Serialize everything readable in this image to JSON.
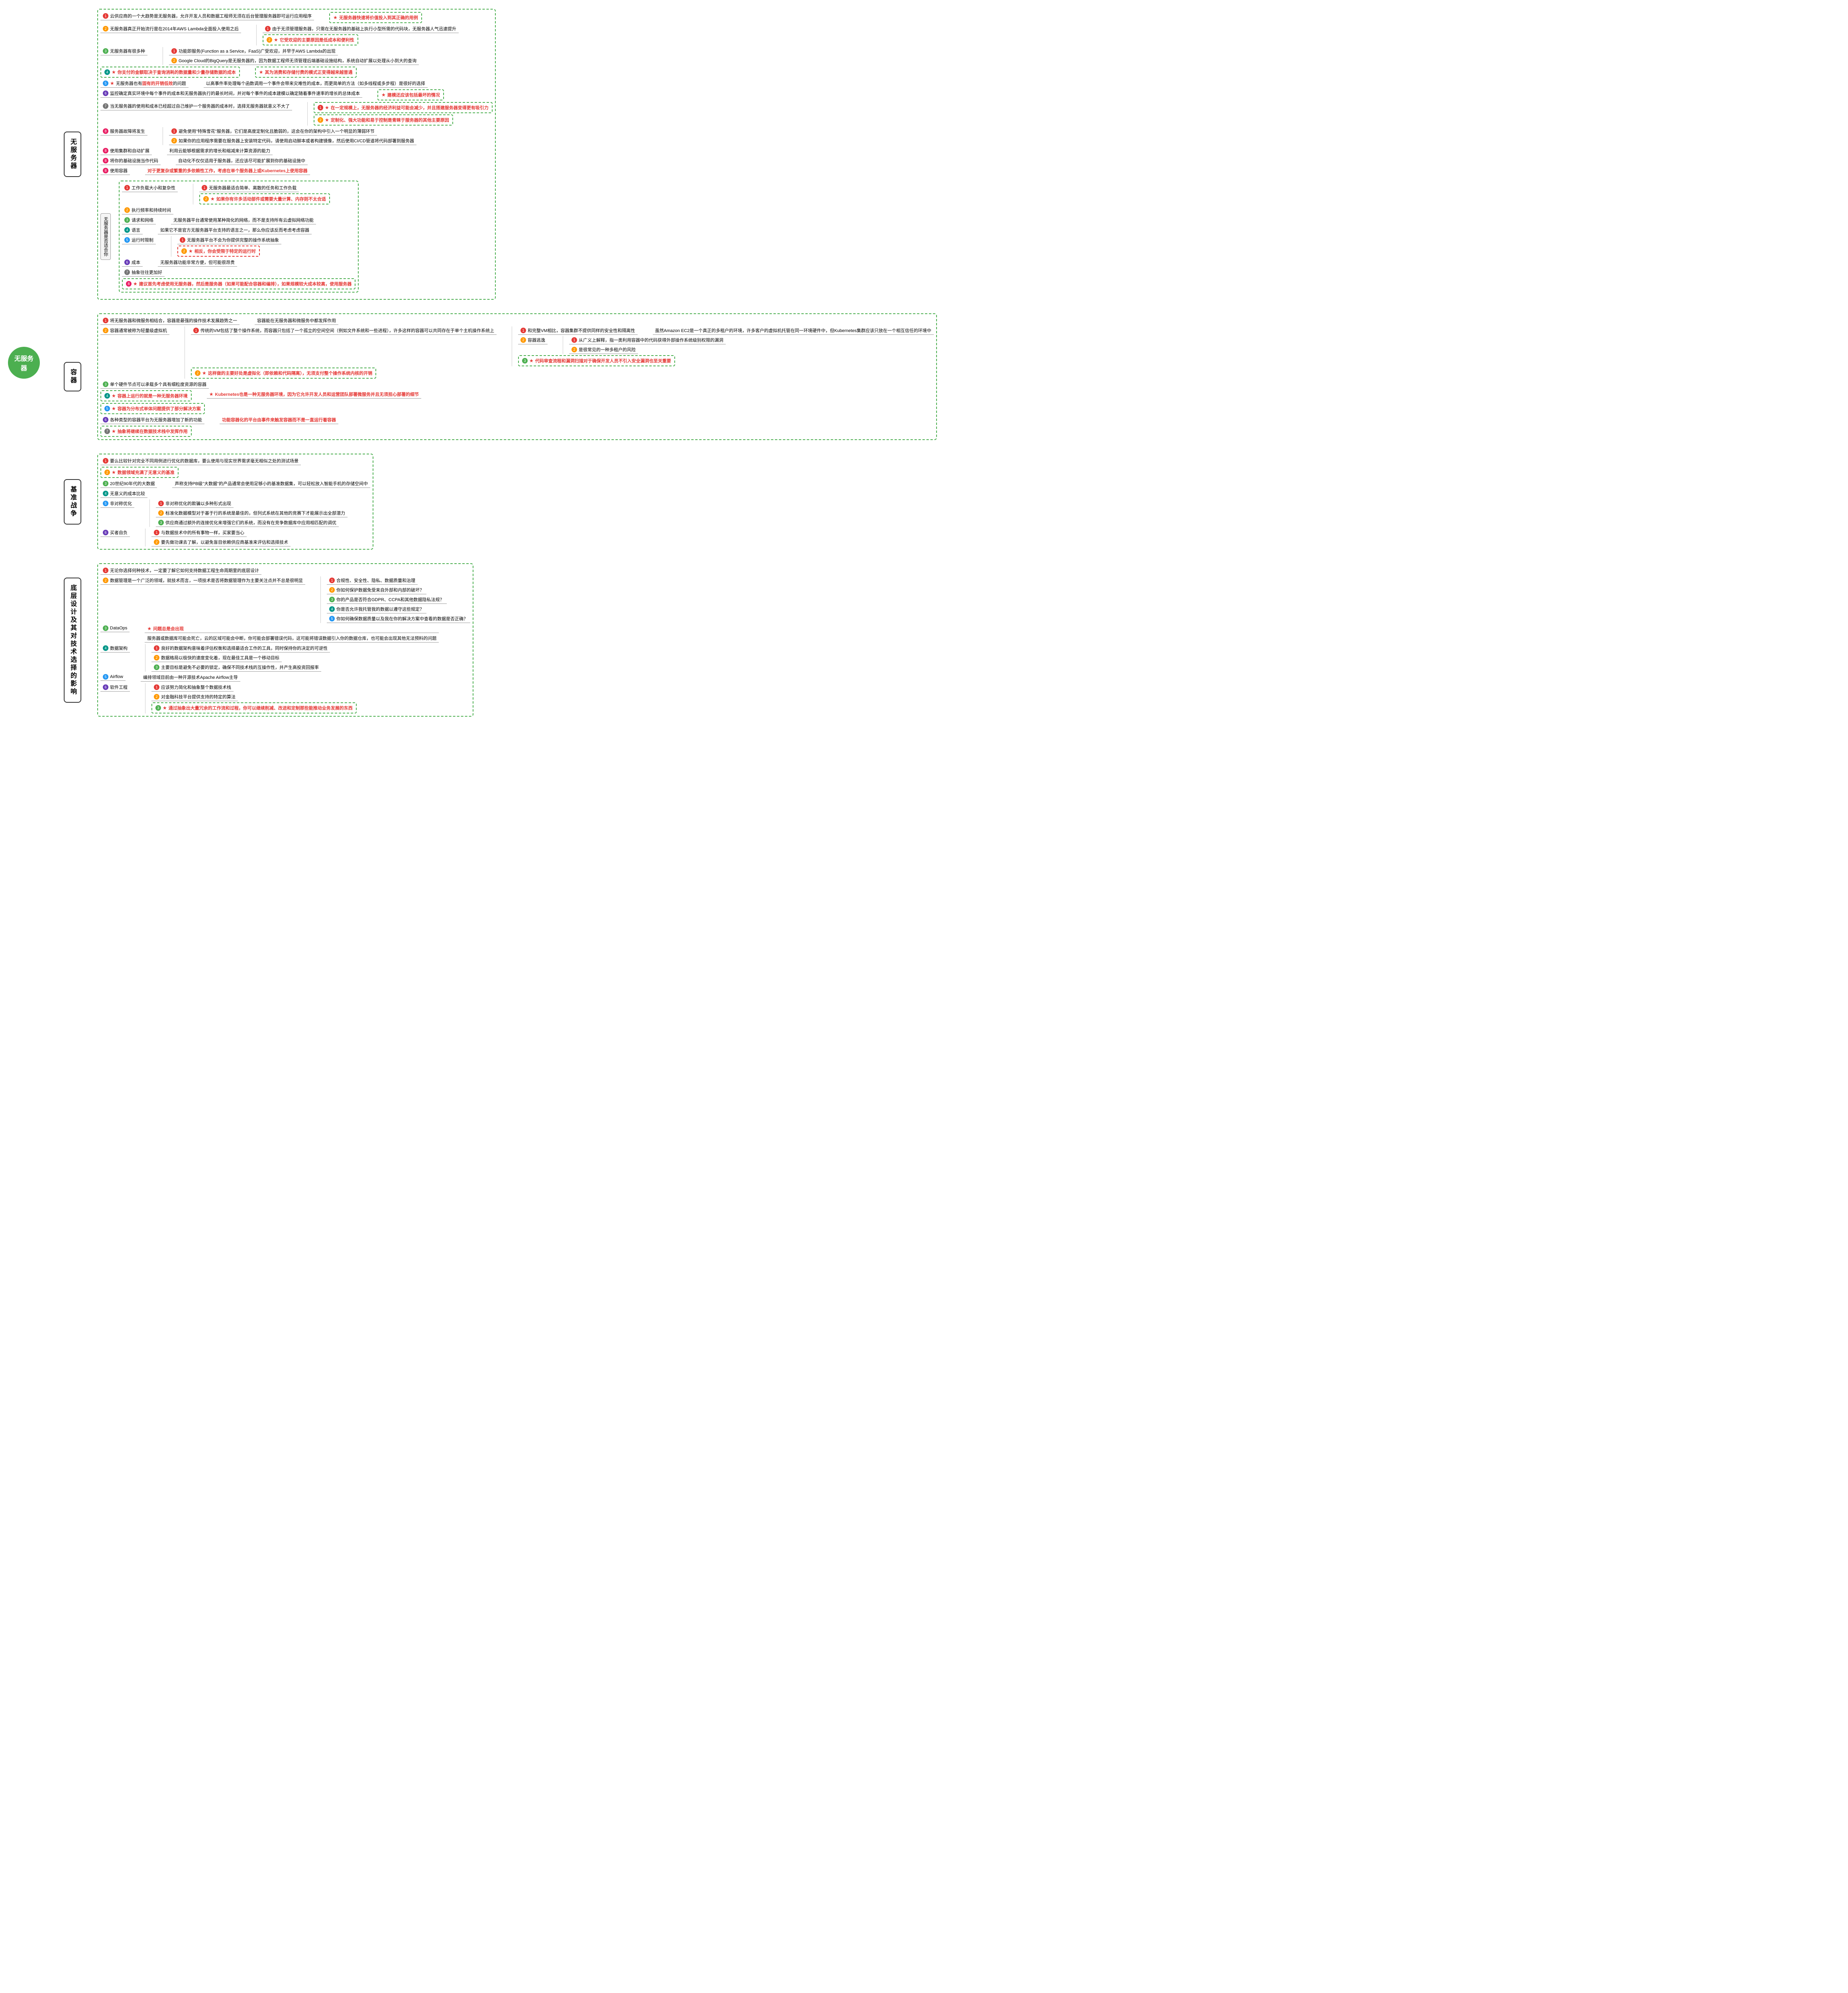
{
  "root": "无服务器",
  "colors": {
    "root_bg": "#4caf50",
    "green_border": "#4caf50",
    "red_border": "#e53935",
    "red_text": "#e53935",
    "num_colors": [
      "#e53935",
      "#ff9800",
      "#4caf50",
      "#009688",
      "#2196f3",
      "#673ab7",
      "#757575",
      "#e91e63"
    ]
  },
  "sections": [
    {
      "title": "无服务器",
      "items": [
        {
          "n": 1,
          "c": "red",
          "t": "云供应商的一个大趋势是无服务器，允许开发人员和数据工程师无须在后台管理服务器即可运行应用程序",
          "side": {
            "star": true,
            "red": true,
            "box": "green",
            "t": "无服务器快速将价值投入到其正确的用例"
          }
        },
        {
          "n": 2,
          "c": "orange",
          "t": "无服务器真正开始流行是在2014年AWS Lambda全面投入使用之后",
          "children": [
            {
              "n": 1,
              "c": "red",
              "t": "由于无须管理服务器，只需在无服务器的基础上执行小型所需的代码块，无服务器人气迅速提升"
            },
            {
              "n": 2,
              "c": "orange",
              "star": true,
              "red": true,
              "box": "green",
              "t": "它受欢迎的主要原因是低成本和便利性"
            }
          ]
        },
        {
          "n": 3,
          "c": "green",
          "t": "无服务器有很多种",
          "children": [
            {
              "n": 1,
              "c": "red",
              "t": "功能即服务(Function as a Service，FaaS)广受欢迎，并早于AWS Lambda的出现"
            },
            {
              "n": 2,
              "c": "orange",
              "t": "Google Cloud的BigQuery是无服务器的，因为数据工程师无须管理后端基础设施结构，系统自动扩展以处理从小到大的查询"
            }
          ]
        },
        {
          "n": 4,
          "c": "teal",
          "star": true,
          "red": true,
          "box": "green",
          "t": "你支付的金额取决于查询消耗的数据量和少量存储数据的成本",
          "side": {
            "star": true,
            "red": true,
            "box": "green",
            "t": "其为消费和存储付费的模式正变得越来越普通"
          }
        },
        {
          "n": 5,
          "c": "blue",
          "star": true,
          "t": "无服务器也有<span class='red-text'>固有的开销低效</span>的问题",
          "side": {
            "t": "以高事件率处理每个函数调用一个事件会带来灾难性的成本，而更简单的方法（如多线程或多步程）是很好的选择"
          }
        },
        {
          "n": 6,
          "c": "purple",
          "t": "监控确定真实环境中每个事件的成本和无服务器执行的最长时间，并对每个事件的成本建模以确定随着事件速率的增长的总体成本",
          "side": {
            "star": true,
            "red": true,
            "box": "green",
            "t": "建模还应该包括最坏的情况"
          }
        },
        {
          "n": 7,
          "c": "gray",
          "t": "当无服务器的使用和成本已经超过自己维护一个服务器的成本时，选择无服务器就意义不大了",
          "children": [
            {
              "n": 1,
              "c": "red",
              "star": true,
              "red": true,
              "box": "green",
              "t": "在一定规模上，无服务器的经济利益可能会减少，并且搭建服务器变得更有吸引力"
            },
            {
              "n": 2,
              "c": "orange",
              "star": true,
              "red": true,
              "box": "green",
              "t": "定制化、强大功能和易于控制是青睐于服务器的其他主要原因"
            }
          ]
        },
        {
          "n": 8,
          "c": "pink",
          "t": "服务器故障将发生",
          "children": [
            {
              "n": 1,
              "c": "red",
              "t": "避免使用\"特殊雪花\"服务器，它们是高度定制化且脆弱的，这会在你的架构中引入一个明显的薄弱环节"
            },
            {
              "n": 2,
              "c": "orange",
              "t": "如果你的应用程序需要在服务器上安装特定代码，请使用启动脚本或者构建镜像，然后使用CI/CD管道将代码部署到服务器"
            }
          ]
        },
        {
          "n": 8,
          "c": "pink",
          "t": "使用集群和自动扩展",
          "side": {
            "t": "利用云能够根据需求的增长和缩减来计算资源的能力"
          }
        },
        {
          "n": 8,
          "c": "pink",
          "t": "将你的基础设施当作代码",
          "side": {
            "t": "自动化不仅仅适用于服务器，还应该尽可能扩展到你的基础设施中"
          }
        },
        {
          "n": 8,
          "c": "pink",
          "t": "使用容器",
          "side": {
            "red": true,
            "t": "对于更复杂或繁重的多依赖性工作，考虑在单个服务器上或Kubernetes上使用容器"
          }
        },
        {
          "sub": "无服务器是否适合你",
          "children": [
            {
              "n": 1,
              "c": "red",
              "t": "工作负载大小和复杂性",
              "children": [
                {
                  "n": 1,
                  "c": "red",
                  "t": "无服务器最适合简单、离散的任务和工作负载"
                },
                {
                  "n": 2,
                  "c": "orange",
                  "star": true,
                  "red": true,
                  "box": "green",
                  "t": "如果你有许多活动部件或需要大量计算、内存则不太合适"
                }
              ]
            },
            {
              "n": 2,
              "c": "orange",
              "t": "执行频率和持续时间"
            },
            {
              "n": 3,
              "c": "green",
              "t": "请求和网络",
              "side": {
                "t": "无服务器平台通常使用某种简化的网络，而不是支持所有云虚拟网络功能"
              }
            },
            {
              "n": 4,
              "c": "teal",
              "t": "语言",
              "side": {
                "t": "如果它不是官方无服务器平台支持的语言之一，那么你应该反而考虑考虑容器"
              }
            },
            {
              "n": 5,
              "c": "blue",
              "t": "运行时限制",
              "children": [
                {
                  "n": 1,
                  "c": "red",
                  "t": "无服务器平台不会为你提供完整的操作系统抽象"
                },
                {
                  "n": 2,
                  "c": "orange",
                  "star": true,
                  "red": true,
                  "box": "red",
                  "t": "相反，你会受限于特定的运行时"
                }
              ]
            },
            {
              "n": 6,
              "c": "purple",
              "t": "成本",
              "side": {
                "t": "无服务器功能非常方便，但可能很昂贵"
              }
            },
            {
              "n": 7,
              "c": "gray",
              "t": "抽象往往更加好"
            },
            {
              "n": 8,
              "c": "pink",
              "star": true,
              "red": true,
              "box": "green",
              "t": "建议首先考虑使用无服务器，然后是服务器（如果可能配合容器和编排），如果规模较大成本较高，使用服务器"
            }
          ]
        }
      ]
    },
    {
      "title": "容器",
      "items": [
        {
          "n": 1,
          "c": "red",
          "t": "将无服务器和微服务相结合，容器是最强的操作技术发展趋势之一",
          "side": {
            "t": "容器能在无服务器和微服务中都发挥作用"
          }
        },
        {
          "n": 2,
          "c": "orange",
          "t": "容器通常被称为轻量级虚拟机",
          "children": [
            {
              "n": 1,
              "c": "red",
              "t": "传统的VM包括了整个操作系统，而容器只包括了一个孤立的空间空间（例如文件系统和一些进程），许多这样的容器可以共同存在于单个主机操作系统上",
              "children": [
                {
                  "n": 1,
                  "c": "red",
                  "t": "和完整VM相比，容器集群不提供同样的安全性和隔离性",
                  "side": {
                    "t": "虽然Amazon EC2是一个真正的多租户的环境，许多客户的虚拟机托管在同一环境硬件中，但Kubernetes集群应该只放在一个相互信任的环境中"
                  }
                },
                {
                  "n": 2,
                  "c": "orange",
                  "t": "容器逃逸",
                  "children": [
                    {
                      "n": 1,
                      "c": "red",
                      "t": "从广义上解释，指一类利用容器中的代码获得外部操作系统级别权限的漏洞"
                    },
                    {
                      "n": 2,
                      "c": "orange",
                      "t": "是很常见的一种多租户的风险"
                    }
                  ]
                },
                {
                  "n": 3,
                  "c": "green",
                  "star": true,
                  "red": true,
                  "box": "green",
                  "t": "代码审查流程和漏洞扫描对于确保开发人员不引入安全漏洞也至关重要"
                }
              ]
            },
            {
              "n": 2,
              "c": "orange",
              "star": true,
              "red": true,
              "box": "green",
              "t": "这样做的主要好处是虚拟化（即依赖和代码隔离），无须支付整个操作系统内核的开销"
            }
          ]
        },
        {
          "n": 3,
          "c": "green",
          "t": "单个硬件节点可以承载多个具有细粒度资源的容器"
        },
        {
          "n": 4,
          "c": "teal",
          "star": true,
          "red": true,
          "box": "green",
          "t": "容器上运行的就是一种无服务器环境",
          "side": {
            "star": true,
            "red": true,
            "t": "Kubernetes也是一种无服务器环境，因为它允许开发人员和运营团队部署微服务并且无须担心部署的细节"
          }
        },
        {
          "n": 5,
          "c": "blue",
          "star": true,
          "red": true,
          "box": "green",
          "t": "容器为分布式单体问题提供了部分解决方案"
        },
        {
          "n": 6,
          "c": "purple",
          "t": "各种类型的容器平台为无服务器增加了新的功能",
          "side": {
            "red": true,
            "t": "功能容器化的平台由事件来触发容器而不是一直运行着容器"
          }
        },
        {
          "n": 7,
          "c": "gray",
          "star": true,
          "red": true,
          "box": "green",
          "t": "抽象将继续在数据技术栈中发挥作用"
        }
      ]
    },
    {
      "title": "基准战争",
      "items": [
        {
          "n": 1,
          "c": "red",
          "t": "要么比较针对完全不同用例进行优化的数据库，要么使用与现实世界需求毫无相似之处的测试场景"
        },
        {
          "n": 2,
          "c": "orange",
          "star": true,
          "red": true,
          "box": "green",
          "t": "数据领域充满了无意义的基准"
        },
        {
          "n": 3,
          "c": "green",
          "t": "20世纪90年代的大数据",
          "side": {
            "t": "声称支持PB级\"大数据\"的产品通常会使用足够小的基准数据集，可以轻松放入智能手机的存储空间中"
          }
        },
        {
          "n": 4,
          "c": "teal",
          "t": "无意义的成本比较"
        },
        {
          "n": 5,
          "c": "blue",
          "t": "非对称优化",
          "children": [
            {
              "n": 1,
              "c": "red",
              "t": "非对称优化的欺骗以多种形式出现"
            },
            {
              "n": 2,
              "c": "orange",
              "t": "标准化数据模型对于基于行的系统是最佳的，但列式系统在其他的竞赛下才能展示出全部潜力"
            },
            {
              "n": 3,
              "c": "green",
              "t": "供应商通过额外的连接优化来增强它们的系统，而没有在竞争数据库中应用相匹配的调优"
            }
          ]
        },
        {
          "n": 6,
          "c": "purple",
          "t": "买者自负",
          "children": [
            {
              "n": 1,
              "c": "red",
              "t": "与数据技术中的所有事物一样，买家要当心"
            },
            {
              "n": 2,
              "c": "orange",
              "t": "要先做功课去了解，以避免盲目依赖供应商基准来评估和选择技术"
            }
          ]
        }
      ]
    },
    {
      "title": "底层设计及其对技术选择的影响",
      "items": [
        {
          "n": 1,
          "c": "red",
          "t": "无论你选择何种技术，一定要了解它如何支持数据工程生命周期里的底层设计"
        },
        {
          "n": 2,
          "c": "orange",
          "t": "数据管理是一个广泛的领域，就技术而言，一项技术是否将数据管理作为主要关注点并不总是很明显",
          "children": [
            {
              "n": 1,
              "c": "red",
              "t": "合规性、安全性、隐私、数据质量和治理"
            },
            {
              "n": 2,
              "c": "orange",
              "t": "你如何保护数据免受来自外部和内部的破坏？"
            },
            {
              "n": 3,
              "c": "green",
              "t": "你的产品是否符合GDPR、CCPA和其他数据隐私法规？"
            },
            {
              "n": 4,
              "c": "teal",
              "t": "你是否允许我托管我的数据以遵守这些规定？"
            },
            {
              "n": 5,
              "c": "blue",
              "t": "你如何确保数据质量以及我在你的解决方案中查看的数据是否正确？"
            }
          ]
        },
        {
          "n": 3,
          "c": "green",
          "t": "DataOps",
          "side": {
            "star": true,
            "red": true,
            "t": "问题总是会出现"
          },
          "extra": "服务器或数据库可能会死亡，云的区域可能会中断，你可能会部署错误代码，这可能将错误数据引入你的数据仓库，也可能会出现其他无法预料的问题"
        },
        {
          "n": 4,
          "c": "teal",
          "t": "数据架构",
          "children": [
            {
              "n": 1,
              "c": "red",
              "t": "良好的数据架构意味着评估权衡和选择最适合工作的工具，同时保持你的决定的可逆性"
            },
            {
              "n": 2,
              "c": "orange",
              "t": "数据格局以极快的速度变化着，现在最佳工具是一个移动目标"
            },
            {
              "n": 3,
              "c": "green",
              "t": "主要目标是避免不必要的锁定，确保不同技术栈的互操作性，并产生高投资回报率"
            }
          ]
        },
        {
          "n": 5,
          "c": "blue",
          "t": "Airflow",
          "side": {
            "t": "编排领域目前由一种开源技术Apache Airflow主导"
          }
        },
        {
          "n": 6,
          "c": "purple",
          "t": "软件工程",
          "children": [
            {
              "n": 1,
              "c": "red",
              "t": "应该努力简化和抽象整个数据技术栈"
            },
            {
              "n": 2,
              "c": "orange",
              "t": "对金融科技平台提供支持的特定的算法"
            },
            {
              "n": 3,
              "c": "green",
              "star": true,
              "red": true,
              "box": "green",
              "t": "通过抽象出大量冗余的工作流和过程，你可以继续削减、改进和定制那些能推动业务发展的东西"
            }
          ]
        }
      ]
    }
  ]
}
